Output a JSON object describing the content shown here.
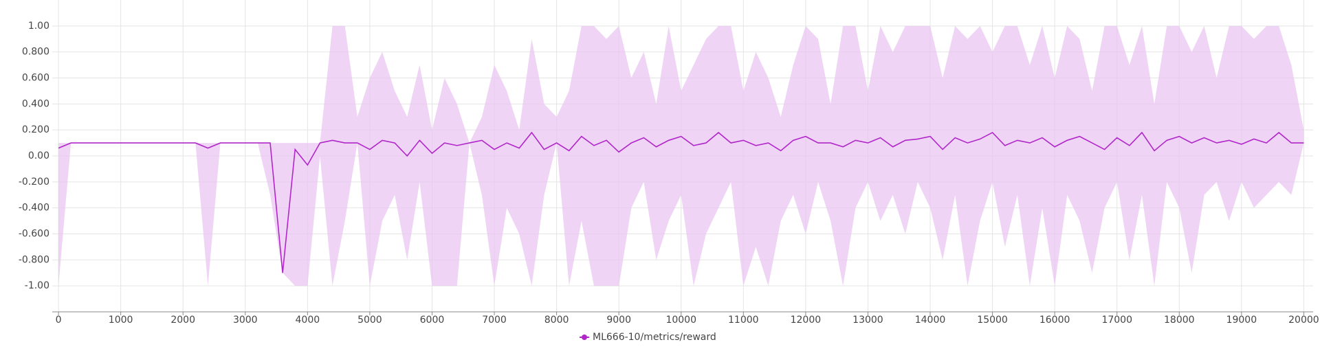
{
  "chart_data": {
    "type": "line",
    "x": [
      0,
      200,
      400,
      600,
      800,
      1000,
      1200,
      1400,
      1600,
      1800,
      2000,
      2200,
      2400,
      2600,
      2800,
      3000,
      3200,
      3400,
      3600,
      3800,
      4000,
      4200,
      4400,
      4600,
      4800,
      5000,
      5200,
      5400,
      5600,
      5800,
      6000,
      6200,
      6400,
      6600,
      6800,
      7000,
      7200,
      7400,
      7600,
      7800,
      8000,
      8200,
      8400,
      8600,
      8800,
      9000,
      9200,
      9400,
      9600,
      9800,
      10000,
      10200,
      10400,
      10600,
      10800,
      11000,
      11200,
      11400,
      11600,
      11800,
      12000,
      12200,
      12400,
      12600,
      12800,
      13000,
      13200,
      13400,
      13600,
      13800,
      14000,
      14200,
      14400,
      14600,
      14800,
      15000,
      15200,
      15400,
      15600,
      15800,
      16000,
      16200,
      16400,
      16600,
      16800,
      17000,
      17200,
      17400,
      17600,
      17800,
      18000,
      18200,
      18400,
      18600,
      18800,
      19000,
      19200,
      19400,
      19600,
      19800,
      20000
    ],
    "series": [
      {
        "name": "ML666-10/metrics/reward",
        "color": "#b026c9",
        "band_color": "#e9c6f1",
        "values": [
          0.06,
          0.1,
          0.1,
          0.1,
          0.1,
          0.1,
          0.1,
          0.1,
          0.1,
          0.1,
          0.1,
          0.1,
          0.06,
          0.1,
          0.1,
          0.1,
          0.1,
          0.1,
          -0.9,
          0.05,
          -0.07,
          0.1,
          0.12,
          0.1,
          0.1,
          0.05,
          0.12,
          0.1,
          0.0,
          0.12,
          0.02,
          0.1,
          0.08,
          0.1,
          0.12,
          0.05,
          0.1,
          0.06,
          0.18,
          0.05,
          0.1,
          0.04,
          0.15,
          0.08,
          0.12,
          0.03,
          0.1,
          0.14,
          0.07,
          0.12,
          0.15,
          0.08,
          0.1,
          0.18,
          0.1,
          0.12,
          0.08,
          0.1,
          0.04,
          0.12,
          0.15,
          0.1,
          0.1,
          0.07,
          0.12,
          0.1,
          0.14,
          0.07,
          0.12,
          0.13,
          0.15,
          0.05,
          0.14,
          0.1,
          0.13,
          0.18,
          0.08,
          0.12,
          0.1,
          0.14,
          0.07,
          0.12,
          0.15,
          0.1,
          0.05,
          0.14,
          0.08,
          0.18,
          0.04,
          0.12,
          0.15,
          0.1,
          0.14,
          0.1,
          0.12,
          0.09,
          0.13,
          0.1,
          0.18,
          0.1,
          0.1
        ],
        "upper": [
          0.1,
          0.1,
          0.1,
          0.1,
          0.1,
          0.1,
          0.1,
          0.1,
          0.1,
          0.1,
          0.1,
          0.1,
          0.1,
          0.1,
          0.1,
          0.1,
          0.1,
          0.1,
          0.1,
          0.1,
          0.1,
          0.1,
          1,
          1,
          0.3,
          0.6,
          0.8,
          0.5,
          0.3,
          0.7,
          0.2,
          0.6,
          0.4,
          0.1,
          0.3,
          0.7,
          0.5,
          0.2,
          0.9,
          0.4,
          0.3,
          0.5,
          1,
          1,
          0.9,
          1,
          0.6,
          0.8,
          0.4,
          1,
          0.5,
          0.7,
          0.9,
          1,
          1,
          0.5,
          0.8,
          0.6,
          0.3,
          0.7,
          1,
          0.9,
          0.4,
          1,
          1,
          0.5,
          1,
          0.8,
          1,
          1,
          1,
          0.6,
          1,
          0.9,
          1,
          0.8,
          1,
          1,
          0.7,
          1,
          0.6,
          1,
          0.9,
          0.5,
          1,
          1,
          0.7,
          1,
          0.4,
          1,
          1,
          0.8,
          1,
          0.6,
          1,
          1,
          0.9,
          1,
          1,
          0.7,
          0.2
        ],
        "lower": [
          -1,
          0.1,
          0.1,
          0.1,
          0.1,
          0.1,
          0.1,
          0.1,
          0.1,
          0.1,
          0.1,
          0.1,
          -1,
          0.1,
          0.1,
          0.1,
          0.1,
          -0.3,
          -0.9,
          -1,
          -1,
          0.0,
          -1,
          -0.5,
          0.1,
          -1,
          -0.5,
          -0.3,
          -0.8,
          -0.2,
          -1,
          -1,
          -1,
          0.1,
          -0.3,
          -1,
          -0.4,
          -0.6,
          -1,
          -0.3,
          0.1,
          -1,
          -0.5,
          -1,
          -1,
          -1,
          -0.4,
          -0.2,
          -0.8,
          -0.5,
          -0.3,
          -1,
          -0.6,
          -0.4,
          -0.2,
          -1,
          -0.7,
          -1,
          -0.5,
          -0.3,
          -0.6,
          -0.2,
          -0.5,
          -1,
          -0.4,
          -0.2,
          -0.5,
          -0.3,
          -0.6,
          -0.2,
          -0.4,
          -0.8,
          -0.3,
          -1,
          -0.5,
          -0.2,
          -0.7,
          -0.3,
          -1,
          -0.4,
          -1,
          -0.3,
          -0.5,
          -0.9,
          -0.4,
          -0.2,
          -0.8,
          -0.3,
          -1,
          -0.2,
          -0.4,
          -0.9,
          -0.3,
          -0.2,
          -0.5,
          -0.2,
          -0.4,
          -0.3,
          -0.2,
          -0.3,
          0.1
        ]
      }
    ],
    "xlim": [
      -100,
      20150
    ],
    "ylim": [
      -1.2,
      1.2
    ],
    "xticks": [
      0,
      1000,
      2000,
      3000,
      4000,
      5000,
      6000,
      7000,
      8000,
      9000,
      10000,
      11000,
      12000,
      13000,
      14000,
      15000,
      16000,
      17000,
      18000,
      19000,
      20000
    ],
    "yticks": [
      {
        "value": -1,
        "label": "-1.00"
      },
      {
        "value": -0.8,
        "label": "-0.800"
      },
      {
        "value": -0.6,
        "label": "-0.600"
      },
      {
        "value": -0.4,
        "label": "-0.400"
      },
      {
        "value": -0.2,
        "label": "-0.200"
      },
      {
        "value": 0,
        "label": "0.00"
      },
      {
        "value": 0.2,
        "label": "0.200"
      },
      {
        "value": 0.4,
        "label": "0.400"
      },
      {
        "value": 0.6,
        "label": "0.600"
      },
      {
        "value": 0.8,
        "label": "0.800"
      },
      {
        "value": 1,
        "label": "1.00"
      }
    ],
    "grid": true,
    "legend": "bottom"
  }
}
